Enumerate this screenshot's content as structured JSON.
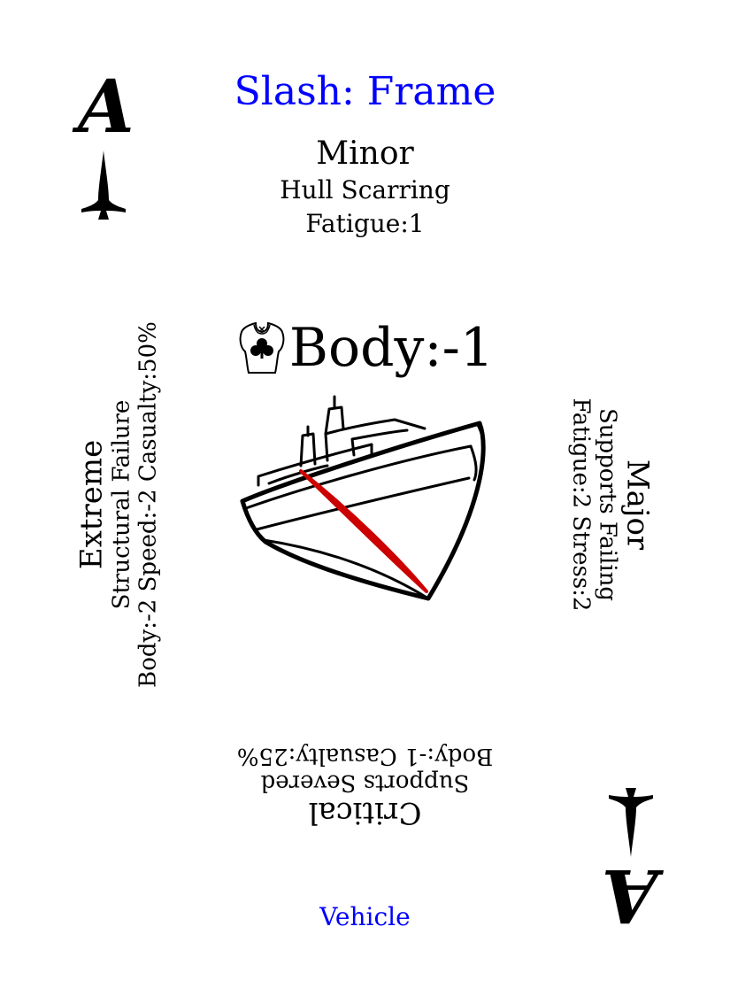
{
  "card": {
    "title": "Slash: Frame",
    "rank": "A",
    "center_stat": "Body:-1",
    "footer": "Vehicle",
    "accent_color": "#0000ff",
    "wound_color": "#cc0000",
    "minor": {
      "heading": "Minor",
      "effect": "Hull Scarring",
      "stats": "Fatigue:1"
    },
    "major": {
      "heading": "Major",
      "effect": "Supports Failing",
      "stats": "Fatigue:2 Stress:2"
    },
    "critical": {
      "heading": "Critical",
      "effect": "Supports Severed",
      "stats": "Body:-1 Casualty:25%"
    },
    "extreme": {
      "heading": "Extreme",
      "effect": "Structural Failure",
      "stats": "Body:-2 Speed:-2 Casualty:50%"
    },
    "icons": {
      "suit": "spade-pip-icon",
      "body": "torso-clubs-icon",
      "art": "ship-icon"
    }
  }
}
